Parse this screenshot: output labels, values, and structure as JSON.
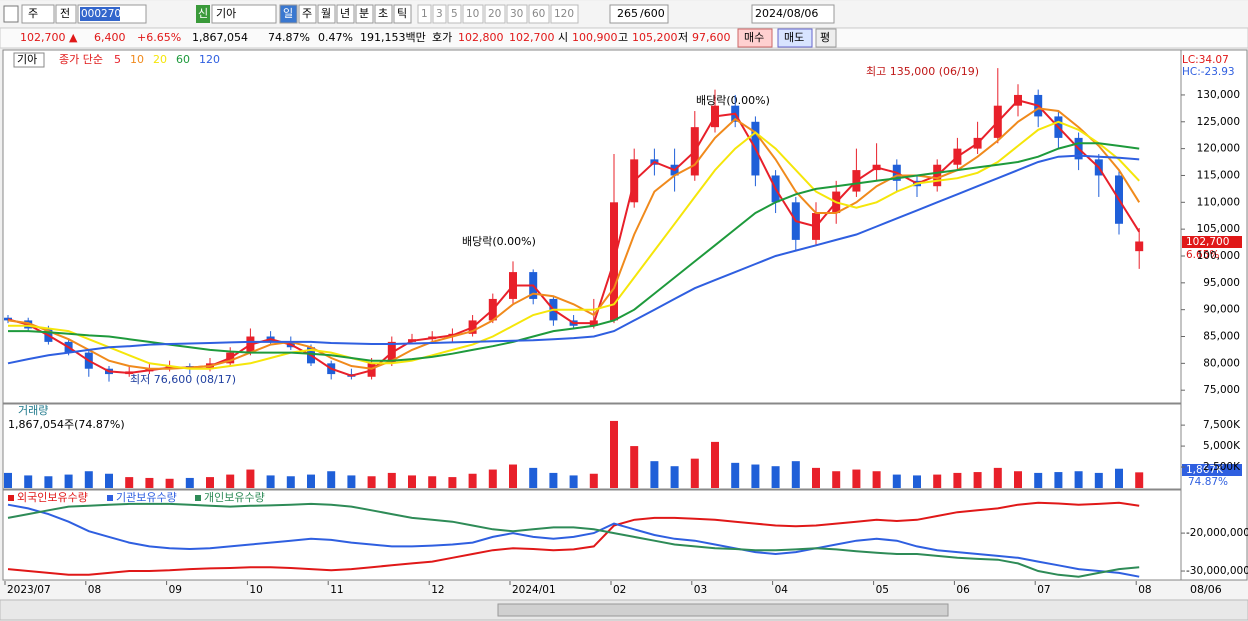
{
  "toolbar": {
    "prefix": [
      "주",
      "전"
    ],
    "code": "000270",
    "new_tag": "신",
    "name": "기아",
    "period_tabs": [
      "일",
      "주",
      "월",
      "년",
      "분",
      "초",
      "틱"
    ],
    "minute_tabs": [
      "1",
      "3",
      "5",
      "10",
      "20",
      "30",
      "60",
      "120"
    ],
    "count": "265",
    "count_max": "/600",
    "date": "2024/08/06"
  },
  "quote": {
    "price": "102,700 ▲",
    "change": "6,400",
    "change_pct": "+6.65%",
    "volume": "1,867,054",
    "vol_ratio": "74.87%",
    "turnover": "0.47%",
    "amount": "191,153백만",
    "bid_label": "호가",
    "ask": "102,800",
    "bid": "102,700",
    "open_label": "시",
    "open": "100,900",
    "high_label": "고",
    "high": "105,200",
    "low_label": "저",
    "low": "97,600",
    "buttons": [
      "매수",
      "매도",
      "평"
    ]
  },
  "chart_data": [
    {
      "type": "candlestick",
      "name": "기아",
      "legend_label": "종가 단순",
      "up_color": "#e8202a",
      "down_color": "#1f5fd8",
      "categories": [
        "2023/07",
        null,
        null,
        null,
        "08",
        null,
        null,
        null,
        "09",
        null,
        null,
        null,
        "10",
        null,
        null,
        null,
        "11",
        null,
        null,
        null,
        null,
        "12",
        null,
        null,
        null,
        "2024/01",
        null,
        null,
        null,
        null,
        "02",
        null,
        null,
        null,
        "03",
        null,
        null,
        null,
        "04",
        null,
        null,
        null,
        null,
        "05",
        null,
        null,
        null,
        "06",
        null,
        null,
        null,
        "07",
        null,
        null,
        null,
        null,
        "08"
      ],
      "open": [
        88500,
        88000,
        86500,
        84000,
        82000,
        79000,
        78000,
        78500,
        79000,
        79500,
        79000,
        80000,
        82000,
        85000,
        84000,
        83000,
        80000,
        78000,
        77500,
        80000,
        84000,
        84500,
        85000,
        85500,
        88000,
        92000,
        97000,
        92000,
        88000,
        87000,
        88000,
        110000,
        118000,
        117000,
        115000,
        124000,
        128000,
        125000,
        115000,
        110000,
        103000,
        108000,
        112000,
        116000,
        117000,
        114000,
        113000,
        117000,
        120000,
        122000,
        128000,
        130000,
        126000,
        122000,
        118000,
        115000,
        100900
      ],
      "high": [
        89000,
        88500,
        87000,
        84500,
        82500,
        79500,
        79500,
        80000,
        80500,
        80000,
        81000,
        83000,
        86500,
        86000,
        85000,
        83500,
        80500,
        79000,
        81000,
        85000,
        85500,
        86000,
        86500,
        89000,
        93000,
        99000,
        97500,
        92500,
        89000,
        92000,
        119000,
        120000,
        120000,
        120000,
        127000,
        131000,
        130000,
        126000,
        116000,
        111000,
        110000,
        114000,
        120000,
        121000,
        118000,
        115000,
        118000,
        122000,
        125000,
        135000,
        132000,
        131000,
        127000,
        123000,
        119000,
        116000,
        105200
      ],
      "low": [
        87500,
        86000,
        83500,
        81500,
        77500,
        76600,
        77500,
        78000,
        78500,
        78000,
        78500,
        79500,
        81500,
        83500,
        82500,
        79500,
        77000,
        77000,
        77000,
        79500,
        83500,
        84000,
        84000,
        85000,
        87500,
        91000,
        91000,
        87000,
        86500,
        86500,
        87500,
        109000,
        115000,
        112000,
        114000,
        123000,
        124000,
        113000,
        108000,
        101000,
        102000,
        106000,
        111000,
        114000,
        112000,
        111000,
        112000,
        116000,
        119000,
        121000,
        126000,
        124000,
        120000,
        116000,
        111000,
        104000,
        97600
      ],
      "close": [
        88000,
        86500,
        84000,
        82000,
        79000,
        78000,
        78500,
        79000,
        79500,
        79000,
        80000,
        82000,
        85000,
        84000,
        83000,
        80000,
        78000,
        77500,
        80000,
        84000,
        84500,
        85000,
        85500,
        88000,
        92000,
        97000,
        92000,
        88000,
        87000,
        88000,
        110000,
        118000,
        117000,
        115000,
        124000,
        128000,
        125000,
        115000,
        110000,
        103000,
        108000,
        112000,
        116000,
        117000,
        114000,
        113000,
        117000,
        120000,
        122000,
        128000,
        130000,
        126000,
        122000,
        118000,
        115000,
        106000,
        102700
      ],
      "series": [
        {
          "name": "5",
          "color": "#e8202a",
          "values": [
            88200,
            87200,
            85200,
            83000,
            80500,
            78500,
            78200,
            78700,
            79200,
            79200,
            79500,
            81000,
            83500,
            84500,
            83500,
            81500,
            79000,
            77700,
            78700,
            82000,
            84200,
            84700,
            85200,
            86700,
            90000,
            94500,
            94500,
            90000,
            87500,
            87500,
            99000,
            114000,
            117500,
            116000,
            119500,
            126000,
            126500,
            120000,
            112500,
            106500,
            105500,
            110000,
            114000,
            116500,
            115500,
            113500,
            115000,
            118500,
            121000,
            125000,
            129000,
            128000,
            124000,
            120000,
            116500,
            110500,
            104500
          ]
        },
        {
          "name": "10",
          "color": "#f08a1c",
          "values": [
            88000,
            87500,
            86000,
            84500,
            82500,
            80500,
            79500,
            79000,
            79000,
            79200,
            79500,
            80500,
            82000,
            83500,
            84000,
            83000,
            81000,
            79500,
            79000,
            80500,
            82500,
            84000,
            85000,
            86000,
            88000,
            91000,
            93000,
            92500,
            91000,
            89000,
            94000,
            104000,
            112000,
            115000,
            117000,
            122000,
            125500,
            123000,
            118000,
            112000,
            108000,
            108000,
            110000,
            113000,
            115000,
            115000,
            114500,
            116000,
            118500,
            121500,
            125000,
            127500,
            127000,
            124000,
            120500,
            116000,
            110000
          ]
        },
        {
          "name": "20",
          "color": "#f5e60a",
          "values": [
            87000,
            87000,
            86500,
            86000,
            84500,
            83000,
            81500,
            80000,
            79500,
            79000,
            79000,
            79500,
            80000,
            81000,
            82000,
            82500,
            82000,
            81000,
            80000,
            80000,
            80500,
            81500,
            82500,
            83500,
            85000,
            87000,
            89000,
            90000,
            90000,
            90000,
            91000,
            96000,
            101000,
            106000,
            111000,
            116000,
            120000,
            123000,
            120000,
            116000,
            112000,
            110000,
            109000,
            110000,
            112000,
            113500,
            114000,
            114500,
            115500,
            117500,
            120500,
            123500,
            125000,
            123500,
            121000,
            118000,
            114000
          ]
        },
        {
          "name": "60",
          "color": "#1e9a3c",
          "values": [
            86000,
            86000,
            85800,
            85500,
            85200,
            85000,
            84500,
            84000,
            83500,
            83000,
            82500,
            82200,
            82000,
            82000,
            82000,
            81800,
            81500,
            81000,
            80500,
            80500,
            80800,
            81200,
            81800,
            82500,
            83200,
            84000,
            85000,
            86000,
            86500,
            87000,
            88000,
            90000,
            93000,
            96000,
            99000,
            102000,
            105000,
            108000,
            110000,
            111500,
            112500,
            113000,
            113500,
            114000,
            114500,
            115000,
            115500,
            116000,
            116500,
            117000,
            117500,
            118500,
            120000,
            121000,
            121000,
            120500,
            120000
          ]
        },
        {
          "name": "120",
          "color": "#2f5fe0",
          "values": [
            80000,
            80800,
            81500,
            82000,
            82500,
            83000,
            83200,
            83500,
            83600,
            83700,
            83800,
            83900,
            84000,
            84000,
            84000,
            84000,
            83800,
            83700,
            83600,
            83600,
            83700,
            83800,
            83900,
            84000,
            84100,
            84200,
            84300,
            84500,
            84700,
            85000,
            86000,
            88000,
            90000,
            92000,
            94000,
            95500,
            97000,
            98500,
            100000,
            101000,
            102000,
            103000,
            104000,
            105500,
            107000,
            108500,
            110000,
            111500,
            113000,
            114500,
            116000,
            117500,
            118500,
            118700,
            118500,
            118300,
            118000
          ]
        }
      ],
      "ylim": [
        72800,
        138000
      ],
      "yticks": [
        {
          "value": 75000,
          "label": "75,000"
        },
        {
          "value": 80000,
          "label": "80,000"
        },
        {
          "value": 85000,
          "label": "85,000"
        },
        {
          "value": 90000,
          "label": "90,000"
        },
        {
          "value": 95000,
          "label": "95,000"
        },
        {
          "value": 100000,
          "label": "100,000"
        },
        {
          "value": 105000,
          "label": "105,000"
        },
        {
          "value": 110000,
          "label": "110,000"
        },
        {
          "value": 115000,
          "label": "115,000"
        },
        {
          "value": 120000,
          "label": "120,000"
        },
        {
          "value": 125000,
          "label": "125,000"
        },
        {
          "value": 130000,
          "label": "130,000"
        }
      ],
      "annotations": [
        "최고 135,000 (06/19)",
        "최저 76,600 (08/17)",
        "배당락(0.00%)",
        "배당락(0.00%)"
      ],
      "lc": "LC:34.07",
      "hc": "HC:-23.93",
      "last_label": "102,700",
      "last_change": "6.65%"
    },
    {
      "type": "bar",
      "title": "거래량",
      "subtitle": "1,867,054주(74.87%)",
      "values": [
        1800,
        1500,
        1400,
        1600,
        2000,
        1700,
        1300,
        1200,
        1100,
        1200,
        1300,
        1600,
        2200,
        1500,
        1400,
        1600,
        2000,
        1500,
        1400,
        1800,
        1500,
        1400,
        1300,
        1700,
        2200,
        2800,
        2400,
        1800,
        1500,
        1700,
        8000,
        5000,
        3200,
        2600,
        3500,
        5500,
        3000,
        2800,
        2600,
        3200,
        2400,
        2000,
        2200,
        2000,
        1600,
        1500,
        1600,
        1800,
        1900,
        2400,
        2000,
        1800,
        1900,
        2000,
        1800,
        2300,
        1867
      ],
      "ylim": [
        0,
        9900
      ],
      "yticks": [
        {
          "value": 2500,
          "label": "2,500K"
        },
        {
          "value": 5000,
          "label": "5,000K"
        },
        {
          "value": 7500,
          "label": "7,500K"
        }
      ],
      "last_label": "1,867K",
      "last_ratio": "74.87%"
    },
    {
      "type": "line",
      "series": [
        {
          "name": "외국인보유수량",
          "color": "#e01818",
          "values": [
            -29500000,
            -30000000,
            -30500000,
            -31000000,
            -31000000,
            -30500000,
            -30000000,
            -30000000,
            -29800000,
            -29500000,
            -29300000,
            -29200000,
            -29000000,
            -29000000,
            -29200000,
            -29500000,
            -29800000,
            -29500000,
            -29000000,
            -28500000,
            -28000000,
            -27500000,
            -26500000,
            -25500000,
            -24500000,
            -24000000,
            -24200000,
            -24500000,
            -24300000,
            -23500000,
            -18000000,
            -16500000,
            -16000000,
            -16000000,
            -16200000,
            -16500000,
            -17000000,
            -17500000,
            -18000000,
            -18200000,
            -18000000,
            -17500000,
            -17000000,
            -16500000,
            -16800000,
            -16500000,
            -15500000,
            -14500000,
            -14000000,
            -13500000,
            -12500000,
            -12000000,
            -12200000,
            -12500000,
            -12300000,
            -12000000,
            -12800000
          ]
        },
        {
          "name": "기관보유수량",
          "color": "#2f5fe0",
          "values": [
            -12500000,
            -13500000,
            -15000000,
            -17000000,
            -19500000,
            -21000000,
            -22500000,
            -23500000,
            -24000000,
            -24200000,
            -24000000,
            -23500000,
            -23000000,
            -22500000,
            -22000000,
            -21500000,
            -21800000,
            -22500000,
            -23000000,
            -23500000,
            -23500000,
            -23300000,
            -23000000,
            -22500000,
            -21000000,
            -20000000,
            -21000000,
            -21500000,
            -21000000,
            -20000000,
            -17500000,
            -19000000,
            -20500000,
            -21500000,
            -22000000,
            -23000000,
            -24000000,
            -25000000,
            -25500000,
            -25000000,
            -24000000,
            -23000000,
            -22000000,
            -21500000,
            -22000000,
            -23500000,
            -24500000,
            -25000000,
            -25500000,
            -26000000,
            -26500000,
            -27500000,
            -28500000,
            -29500000,
            -30000000,
            -30500000,
            -31500000
          ]
        },
        {
          "name": "개인보유수량",
          "color": "#2e8b57",
          "values": [
            -16000000,
            -15000000,
            -14000000,
            -13000000,
            -12800000,
            -12500000,
            -12300000,
            -12300000,
            -12300000,
            -12500000,
            -12800000,
            -13000000,
            -12800000,
            -12700000,
            -12500000,
            -12300000,
            -12500000,
            -13000000,
            -14000000,
            -15000000,
            -16000000,
            -16500000,
            -17000000,
            -18000000,
            -19000000,
            -19500000,
            -19000000,
            -18500000,
            -18500000,
            -19000000,
            -20000000,
            -21000000,
            -22000000,
            -23000000,
            -23500000,
            -24000000,
            -24200000,
            -24500000,
            -24500000,
            -24300000,
            -24000000,
            -24300000,
            -24800000,
            -25200000,
            -25500000,
            -25500000,
            -26000000,
            -26500000,
            -26800000,
            -27000000,
            -28000000,
            -30000000,
            -31000000,
            -31500000,
            -30500000,
            -29500000,
            -29000000
          ]
        }
      ],
      "ylim": [
        -32100000,
        -8900000
      ],
      "yticks": [
        {
          "value": -20000000,
          "label": "-20,000,000"
        },
        {
          "value": -30000000,
          "label": "-30,000,000"
        }
      ]
    }
  ],
  "cursor_date": "08/06"
}
